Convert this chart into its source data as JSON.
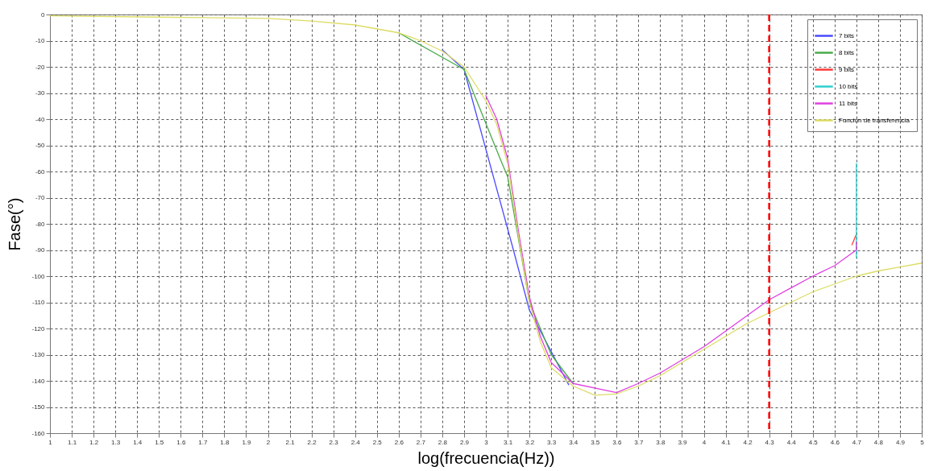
{
  "chart_data": {
    "type": "line",
    "xlabel": "log(frecuencia(Hz))",
    "ylabel": "Fase(°)",
    "xlim": [
      1,
      5
    ],
    "xticks": [
      1,
      1.1,
      1.2,
      1.3,
      1.4,
      1.5,
      1.6,
      1.7,
      1.8,
      1.9,
      2,
      2.1,
      2.2,
      2.3,
      2.4,
      2.5,
      2.6,
      2.7,
      2.8,
      2.9,
      3,
      3.1,
      3.2,
      3.3,
      3.4,
      3.5,
      3.6,
      3.7,
      3.8,
      3.9,
      4,
      4.1,
      4.2,
      4.3,
      4.4,
      4.5,
      4.6,
      4.7,
      4.8,
      4.9,
      5
    ],
    "ylim": [
      -160,
      0
    ],
    "yticks": [
      0,
      -10,
      -20,
      -30,
      -40,
      -50,
      -60,
      -70,
      -80,
      -90,
      -100,
      -110,
      -120,
      -130,
      -140,
      -150,
      -160
    ],
    "grid": true,
    "legend": "top right",
    "line_style": "solid",
    "ref_lines": [
      {
        "axis": "x",
        "value": 4.3,
        "color": "#ff0000",
        "line_style": "dashed"
      }
    ],
    "series": [
      {
        "name": "7 bits",
        "color": "#4a4aff",
        "x": [
          2.8,
          2.9,
          3.12,
          3.2,
          3.38
        ],
        "values": [
          -13.5,
          -21,
          -88,
          -113,
          -141.5
        ]
      },
      {
        "name": "8 bits",
        "color": "#4aaa4a",
        "x": [
          2.6,
          2.9,
          3.065,
          3.1,
          3.2,
          3.3,
          3.4
        ],
        "values": [
          -7,
          -21,
          -55,
          -62,
          -110,
          -130,
          -141
        ]
      },
      {
        "name": "9 bits",
        "color": "#ff3a3a",
        "x": [
          4.68,
          4.7
        ],
        "values": [
          -88,
          -84
        ]
      },
      {
        "name": "10 bits",
        "color": "#30d0d0",
        "x": [
          4.7,
          4.7
        ],
        "values": [
          -93,
          -57
        ]
      },
      {
        "name": "11 bits",
        "color": "#e040e0",
        "x": [
          3,
          3.05,
          3.1,
          3.15,
          3.2,
          3.25,
          3.3,
          3.4,
          3.6,
          3.7,
          3.8,
          3.9,
          4,
          4.1,
          4.2,
          4.3,
          4.4,
          4.5,
          4.6,
          4.65,
          4.7,
          4.7
        ],
        "values": [
          -31,
          -40,
          -55,
          -83,
          -108,
          -123,
          -133,
          -141,
          -144.5,
          -141,
          -137,
          -132,
          -127,
          -121,
          -115,
          -109,
          -104.5,
          -100,
          -96,
          -93,
          -90,
          -87
        ]
      },
      {
        "name": "Función de transferencia",
        "color": "#dcdc64",
        "x": [
          1,
          1.5,
          2,
          2.2,
          2.4,
          2.6,
          2.7,
          2.8,
          2.9,
          3,
          3.05,
          3.1,
          3.15,
          3.2,
          3.25,
          3.3,
          3.4,
          3.5,
          3.6,
          3.7,
          3.8,
          3.9,
          4,
          4.1,
          4.2,
          4.3,
          4.4,
          4.5,
          4.6,
          4.7,
          4.8,
          4.9,
          5
        ],
        "values": [
          -0.5,
          -1,
          -1.5,
          -2.5,
          -4,
          -7,
          -10,
          -14,
          -20,
          -33,
          -42,
          -57,
          -85,
          -110,
          -125,
          -135,
          -142,
          -145.5,
          -145,
          -142,
          -138,
          -133,
          -128,
          -123,
          -118,
          -114,
          -110,
          -106,
          -103,
          -100,
          -98,
          -96.5,
          -95
        ]
      }
    ]
  }
}
